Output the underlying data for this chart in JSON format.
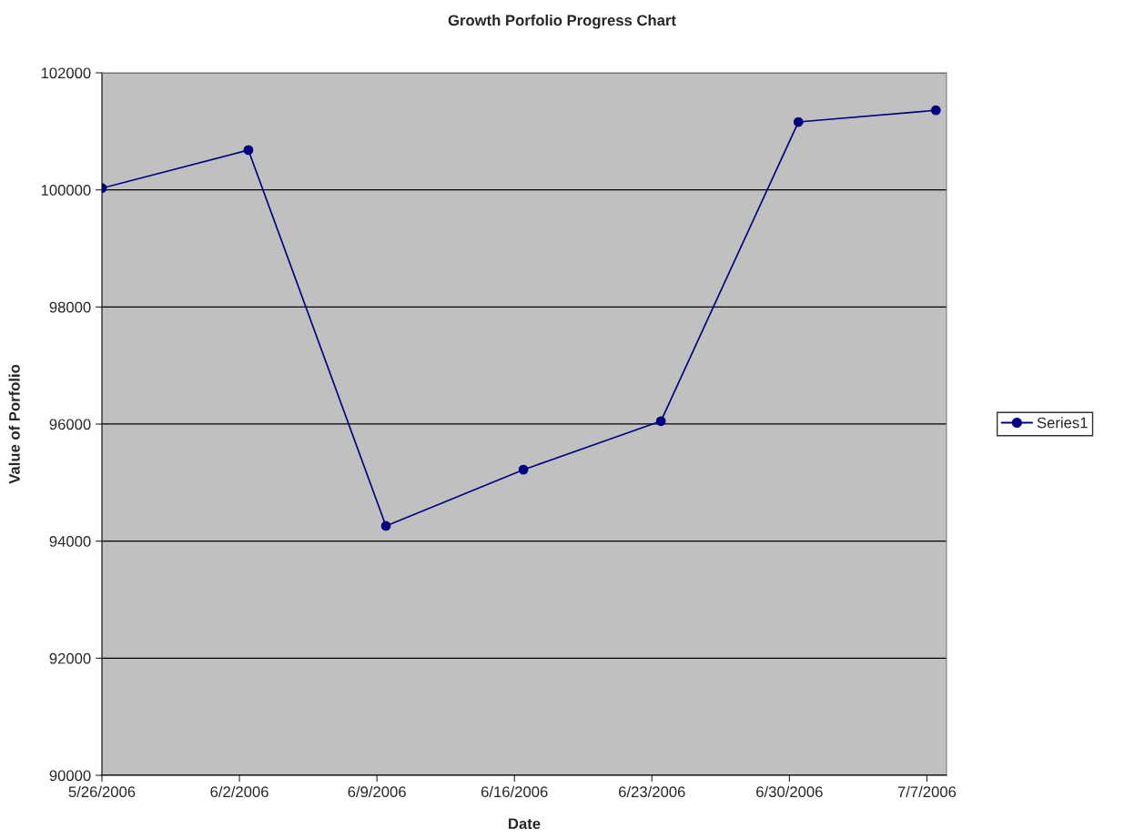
{
  "chart_data": {
    "type": "line",
    "title": "Growth Porfolio Progress Chart",
    "xlabel": "Date",
    "ylabel": "Value of Porfolio",
    "x": [
      "2006-05-26",
      "2006-06-02T11:00",
      "2006-06-09T11:00",
      "2006-06-16T11:00",
      "2006-06-23T11:00",
      "2006-06-30T11:00",
      "2006-07-07T11:00"
    ],
    "series": [
      {
        "name": "Series1",
        "color": "#000080",
        "values": [
          100030,
          100680,
          94260,
          95220,
          96050,
          101160,
          101360
        ]
      }
    ],
    "xlim": [
      "2006-05-26",
      "2006-07-08"
    ],
    "xticks": [
      {
        "value": "2006-05-26",
        "label": "5/26/2006"
      },
      {
        "value": "2006-06-02",
        "label": "6/2/2006"
      },
      {
        "value": "2006-06-09",
        "label": "6/9/2006"
      },
      {
        "value": "2006-06-16",
        "label": "6/16/2006"
      },
      {
        "value": "2006-06-23",
        "label": "6/23/2006"
      },
      {
        "value": "2006-06-30",
        "label": "6/30/2006"
      },
      {
        "value": "2006-07-07",
        "label": "7/7/2006"
      }
    ],
    "ylim": [
      90000,
      102000
    ],
    "yticks": [
      90000,
      92000,
      94000,
      96000,
      98000,
      100000,
      102000
    ],
    "grid": "y",
    "legend": "right",
    "marker": "circle",
    "line_style": "solid"
  }
}
